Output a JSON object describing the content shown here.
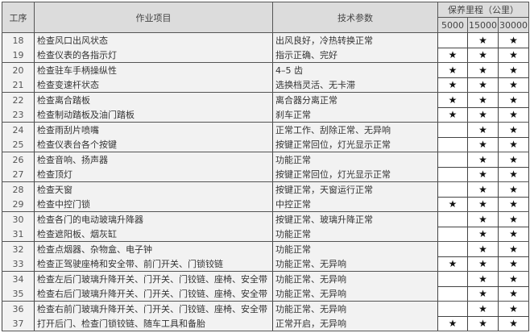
{
  "header": {
    "step": "工序",
    "item": "作业项目",
    "spec": "技术参数",
    "mileage": "保养里程（公里）",
    "m1": "5000",
    "m2": "15000",
    "m3": "30000"
  },
  "star": "★",
  "rows": [
    {
      "no": "18",
      "item": "检查风口出风状态",
      "spec": "出风良好，冷热转换正常",
      "m": [
        0,
        1,
        1
      ]
    },
    {
      "no": "19",
      "item": "检查仪表的各指示灯",
      "spec": "指示正确、完好",
      "m": [
        1,
        1,
        1
      ]
    },
    {
      "no": "20",
      "item": "检查驻车手柄操纵性",
      "spec": "4–5 齿",
      "m": [
        1,
        1,
        1
      ]
    },
    {
      "no": "21",
      "item": "检查变速杆状态",
      "spec": "选换档灵活、无卡滞",
      "m": [
        1,
        1,
        1
      ]
    },
    {
      "no": "22",
      "item": "检查离合踏板",
      "spec": "离合器分离正常",
      "m": [
        1,
        1,
        1
      ]
    },
    {
      "no": "23",
      "item": "检查制动踏板及油门踏板",
      "spec": "刹车正常",
      "m": [
        1,
        1,
        1
      ]
    },
    {
      "no": "24",
      "item": "检查雨刮片喷嘴",
      "spec": "正常工作、刮除正常、无异响",
      "m": [
        0,
        1,
        1
      ]
    },
    {
      "no": "25",
      "item": "检查仪表台各个按键",
      "spec": "按键正常回位，灯光显示正常",
      "m": [
        0,
        1,
        1
      ]
    },
    {
      "no": "26",
      "item": "检查音响、扬声器",
      "spec": "功能正常",
      "m": [
        0,
        1,
        1
      ]
    },
    {
      "no": "27",
      "item": "检查顶灯",
      "spec": "按键正常回位，灯光显示正常",
      "m": [
        0,
        1,
        1
      ]
    },
    {
      "no": "28",
      "item": "检查天窗",
      "spec": "按键正常，天窗运行正常",
      "m": [
        0,
        1,
        1
      ]
    },
    {
      "no": "29",
      "item": "检查中控门锁",
      "spec": "中控正常",
      "m": [
        1,
        1,
        1
      ]
    },
    {
      "no": "30",
      "item": "检查各门的电动玻璃升降器",
      "spec": "按键正常、玻璃升降正常",
      "m": [
        0,
        1,
        1
      ]
    },
    {
      "no": "31",
      "item": "检查遮阳板、烟灰缸",
      "spec": "功能正常",
      "m": [
        0,
        1,
        1
      ]
    },
    {
      "no": "32",
      "item": "检查点烟器、杂物盒、电子钟",
      "spec": "功能正常",
      "m": [
        0,
        1,
        1
      ]
    },
    {
      "no": "33",
      "item": "检查正驾驶座椅和安全带、前门开关、门锁铰链",
      "spec": "功能正常、无异响",
      "m": [
        1,
        1,
        1
      ]
    },
    {
      "no": "34",
      "item": "检查左后门玻璃升降开关、门开关、门铰链、座椅、安全带",
      "spec": "功能正常、无异响",
      "m": [
        0,
        1,
        1
      ]
    },
    {
      "no": "35",
      "item": "检查右后门玻璃升降开关、门开关、门铰链、座椅、安全带",
      "spec": "功能正常、无异响",
      "m": [
        0,
        1,
        1
      ]
    },
    {
      "no": "36",
      "item": "检查右前门玻璃升降开关、门开关、门铰链、座椅、安全带",
      "spec": "功能正常、无异响",
      "m": [
        0,
        1,
        1
      ]
    },
    {
      "no": "37",
      "item": "打开后门、检查门锁铰链、随车工具和备胎",
      "spec": "正常开启，无异响",
      "m": [
        1,
        1,
        1
      ]
    }
  ]
}
